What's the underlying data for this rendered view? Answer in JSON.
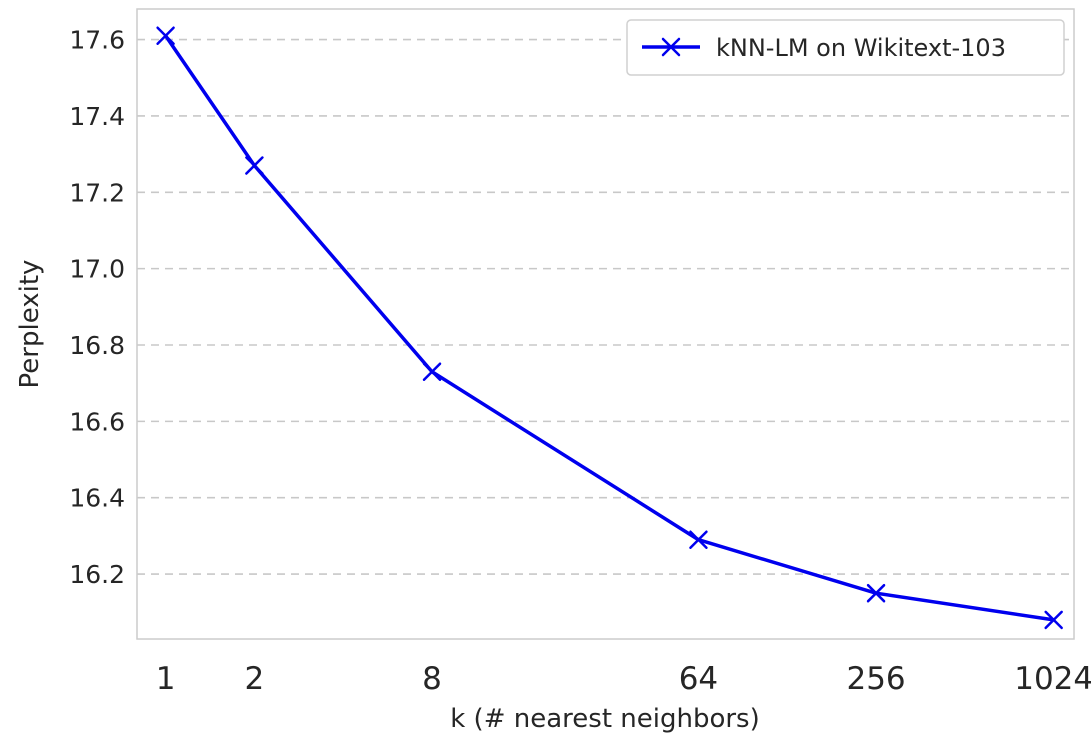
{
  "chart_data": {
    "type": "line",
    "title": "",
    "xlabel": "k (# nearest neighbors)",
    "ylabel": "Perplexity",
    "x_scale": "log",
    "x_ticks": [
      1,
      2,
      8,
      64,
      256,
      1024
    ],
    "x_tick_labels": [
      "1",
      "2",
      "8",
      "64",
      "256",
      "1024"
    ],
    "y_ticks": [
      16.2,
      16.4,
      16.6,
      16.8,
      17.0,
      17.2,
      17.4,
      17.6
    ],
    "y_tick_labels": [
      "16.2",
      "16.4",
      "16.6",
      "16.8",
      "17.0",
      "17.2",
      "17.4",
      "17.6"
    ],
    "xlim": [
      0.8,
      1200
    ],
    "ylim": [
      16.03,
      17.68
    ],
    "grid": "horizontal-dashed",
    "legend_position": "top-right",
    "series": [
      {
        "name": "kNN-LM on Wikitext-103",
        "color": "#0000ee",
        "marker": "x",
        "x": [
          1,
          2,
          8,
          64,
          256,
          1024
        ],
        "y": [
          17.61,
          17.27,
          16.73,
          16.29,
          16.15,
          16.08
        ]
      }
    ]
  }
}
